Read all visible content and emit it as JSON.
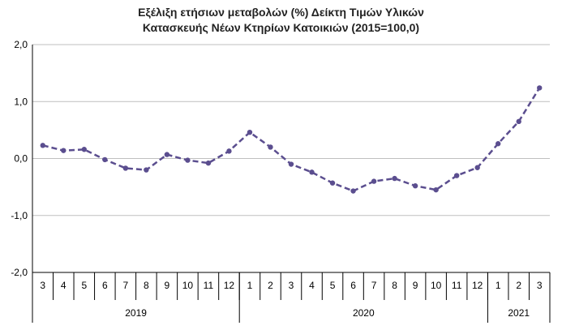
{
  "chart_data": {
    "type": "line",
    "title_line1": "Εξέλιξη ετήσιων μεταβολών (%) Δείκτη Τιμών Υλικών",
    "title_line2": "Κατασκευής Νέων Κτηρίων Κατοικιών (2015=100,0)",
    "categories": [
      "3",
      "4",
      "5",
      "6",
      "7",
      "8",
      "9",
      "10",
      "11",
      "12",
      "1",
      "2",
      "3",
      "4",
      "5",
      "6",
      "7",
      "8",
      "9",
      "10",
      "11",
      "12",
      "1",
      "2",
      "3"
    ],
    "year_groups": [
      {
        "label": "2019",
        "start": 0,
        "end": 9
      },
      {
        "label": "2020",
        "start": 10,
        "end": 21
      },
      {
        "label": "2021",
        "start": 22,
        "end": 24
      }
    ],
    "values": [
      0.23,
      0.14,
      0.16,
      -0.02,
      -0.17,
      -0.2,
      0.07,
      -0.03,
      -0.08,
      0.13,
      0.46,
      0.2,
      -0.1,
      -0.24,
      -0.43,
      -0.57,
      -0.4,
      -0.35,
      -0.48,
      -0.55,
      -0.3,
      -0.16,
      0.26,
      0.65,
      1.24
    ],
    "ylim": [
      -2,
      2
    ],
    "y_ticks": [
      {
        "value": 2,
        "label": "2,0"
      },
      {
        "value": 1,
        "label": "1,0"
      },
      {
        "value": 0,
        "label": "0,0"
      },
      {
        "value": -1,
        "label": "-1,0"
      },
      {
        "value": -2,
        "label": "-2,0"
      }
    ],
    "line_color": "#5b4e8f",
    "marker_color": "#5b4e8f",
    "grid": true
  }
}
